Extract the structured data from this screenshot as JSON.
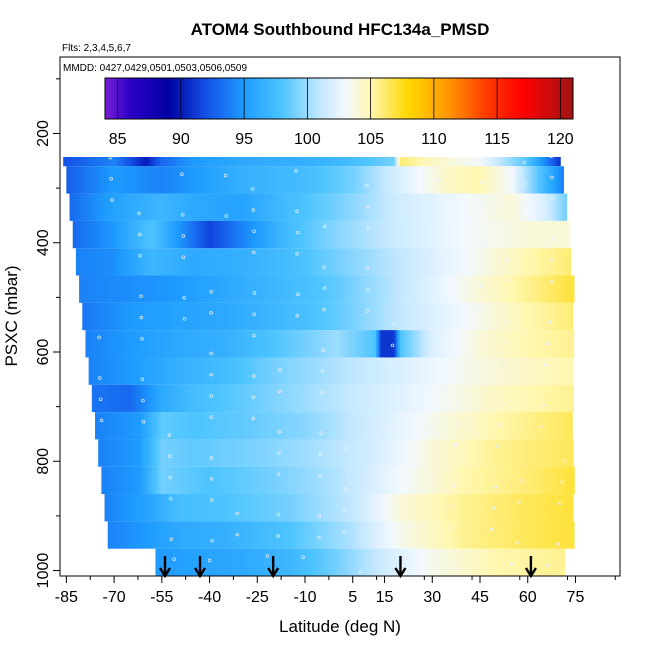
{
  "chart_data": {
    "type": "heatmap",
    "title": "ATOM4 Southbound HFC134a_PMSD",
    "flights_label": "Flts: 2,3,4,5,6,7",
    "dates_label": "MMDD: 0427,0429,0501,0503,0506,0509",
    "xlabel": "Latitude (deg N)",
    "ylabel": "PSXC (mbar)",
    "xlim": [
      -87,
      89
    ],
    "ylim": [
      1010,
      60
    ],
    "x_ticks": [
      -85,
      -70,
      -55,
      -40,
      -25,
      -10,
      5,
      15,
      30,
      45,
      60,
      75
    ],
    "x_tick_labels": [
      "-85",
      "-70",
      "-55",
      "-40",
      "-25",
      "-10",
      "5",
      "15",
      "30",
      "45",
      "60",
      "75"
    ],
    "y_ticks": [
      200,
      400,
      600,
      800,
      1000
    ],
    "y_tick_labels": [
      "200",
      "400",
      "600",
      "800",
      "1000"
    ],
    "colorbar": {
      "min": 84,
      "max": 121,
      "ticks": [
        85,
        90,
        95,
        100,
        105,
        110,
        115,
        120
      ],
      "tick_labels": [
        "85",
        "90",
        "95",
        "100",
        "105",
        "110",
        "115",
        "120"
      ],
      "colors": [
        {
          "v": 84,
          "c": "#7a1fd6"
        },
        {
          "v": 86,
          "c": "#2d00c8"
        },
        {
          "v": 89,
          "c": "#0000a0"
        },
        {
          "v": 92,
          "c": "#1450e6"
        },
        {
          "v": 95,
          "c": "#1e9bff"
        },
        {
          "v": 98,
          "c": "#4dc4ff"
        },
        {
          "v": 101,
          "c": "#c4e8ff"
        },
        {
          "v": 103,
          "c": "#f2f8ff"
        },
        {
          "v": 105,
          "c": "#fff7b0"
        },
        {
          "v": 108,
          "c": "#ffd700"
        },
        {
          "v": 111,
          "c": "#ff9a00"
        },
        {
          "v": 114,
          "c": "#ff4000"
        },
        {
          "v": 117,
          "c": "#ff0000"
        },
        {
          "v": 121,
          "c": "#a01414"
        }
      ]
    },
    "profile_arrows_lat": [
      -54,
      -43,
      -20,
      20,
      61
    ],
    "bands": [
      {
        "p_top": 165,
        "p_bot": 210,
        "lat_start": -60,
        "lat_end": 69,
        "profile": [
          [
            -60,
            93
          ],
          [
            -52,
            91
          ],
          [
            -40,
            90
          ],
          [
            -25,
            90
          ],
          [
            -10,
            89.5
          ],
          [
            10,
            89
          ],
          [
            30,
            88.5
          ],
          [
            50,
            87.5
          ],
          [
            64,
            86.5
          ],
          [
            69,
            84
          ]
        ]
      },
      {
        "p_top": 210,
        "p_bot": 260,
        "lat_start": -86,
        "lat_end": 70,
        "profile": [
          [
            -86,
            92
          ],
          [
            -70,
            94
          ],
          [
            -60,
            90
          ],
          [
            -55,
            93
          ],
          [
            -45,
            95
          ],
          [
            -30,
            96
          ],
          [
            -10,
            96.5
          ],
          [
            0,
            97
          ],
          [
            18,
            99
          ],
          [
            20,
            106
          ],
          [
            30,
            104.5
          ],
          [
            45,
            103
          ],
          [
            60,
            98
          ],
          [
            70,
            91
          ]
        ]
      },
      {
        "p_top": 260,
        "p_bot": 310,
        "lat_start": -85,
        "lat_end": 71,
        "profile": [
          [
            -85,
            92.5
          ],
          [
            -70,
            95
          ],
          [
            -55,
            94
          ],
          [
            -45,
            95
          ],
          [
            -30,
            96.5
          ],
          [
            -10,
            97.5
          ],
          [
            5,
            99
          ],
          [
            20,
            102
          ],
          [
            35,
            104.5
          ],
          [
            45,
            105
          ],
          [
            55,
            103
          ],
          [
            62,
            99
          ],
          [
            71,
            94
          ]
        ]
      },
      {
        "p_top": 310,
        "p_bot": 360,
        "lat_start": -84,
        "lat_end": 72,
        "profile": [
          [
            -84,
            93
          ],
          [
            -70,
            95.5
          ],
          [
            -55,
            97
          ],
          [
            -45,
            96
          ],
          [
            -30,
            95.5
          ],
          [
            -15,
            97.5
          ],
          [
            0,
            99
          ],
          [
            20,
            101.5
          ],
          [
            40,
            103
          ],
          [
            55,
            104
          ],
          [
            65,
            102
          ],
          [
            72,
            99
          ]
        ]
      },
      {
        "p_top": 360,
        "p_bot": 410,
        "lat_start": -83,
        "lat_end": 73,
        "profile": [
          [
            -83,
            93
          ],
          [
            -70,
            95
          ],
          [
            -58,
            98
          ],
          [
            -50,
            95
          ],
          [
            -40,
            91.5
          ],
          [
            -30,
            94
          ],
          [
            -15,
            97.5
          ],
          [
            0,
            99.5
          ],
          [
            20,
            101.5
          ],
          [
            40,
            103
          ],
          [
            60,
            104
          ],
          [
            73,
            104
          ]
        ]
      },
      {
        "p_top": 410,
        "p_bot": 460,
        "lat_start": -82,
        "lat_end": 73,
        "profile": [
          [
            -82,
            94
          ],
          [
            -70,
            94.5
          ],
          [
            -58,
            97
          ],
          [
            -45,
            96
          ],
          [
            -30,
            96.5
          ],
          [
            -15,
            97.5
          ],
          [
            0,
            99
          ],
          [
            20,
            101
          ],
          [
            40,
            103
          ],
          [
            60,
            105
          ],
          [
            73,
            106
          ]
        ]
      },
      {
        "p_top": 460,
        "p_bot": 510,
        "lat_start": -81,
        "lat_end": 74,
        "profile": [
          [
            -81,
            94
          ],
          [
            -65,
            94.5
          ],
          [
            -50,
            95
          ],
          [
            -35,
            96
          ],
          [
            -20,
            97
          ],
          [
            0,
            98.5
          ],
          [
            20,
            101
          ],
          [
            40,
            103.5
          ],
          [
            60,
            105.5
          ],
          [
            74,
            107
          ]
        ]
      },
      {
        "p_top": 510,
        "p_bot": 560,
        "lat_start": -80,
        "lat_end": 74,
        "profile": [
          [
            -80,
            93.5
          ],
          [
            -65,
            95
          ],
          [
            -50,
            95.5
          ],
          [
            -35,
            96
          ],
          [
            -20,
            97
          ],
          [
            0,
            98.5
          ],
          [
            20,
            101
          ],
          [
            40,
            103
          ],
          [
            60,
            105
          ],
          [
            74,
            106
          ]
        ]
      },
      {
        "p_top": 560,
        "p_bot": 610,
        "lat_start": -79,
        "lat_end": 74,
        "profile": [
          [
            -79,
            94
          ],
          [
            -65,
            95
          ],
          [
            -50,
            96
          ],
          [
            -35,
            96.5
          ],
          [
            -20,
            98
          ],
          [
            0,
            100
          ],
          [
            12,
            98
          ],
          [
            14,
            91
          ],
          [
            18,
            91
          ],
          [
            20,
            98
          ],
          [
            30,
            102
          ],
          [
            45,
            104
          ],
          [
            60,
            105
          ],
          [
            74,
            105.5
          ]
        ]
      },
      {
        "p_top": 610,
        "p_bot": 660,
        "lat_start": -78,
        "lat_end": 74,
        "profile": [
          [
            -78,
            94
          ],
          [
            -65,
            95
          ],
          [
            -50,
            96.5
          ],
          [
            -35,
            97.5
          ],
          [
            -20,
            99
          ],
          [
            0,
            100.5
          ],
          [
            20,
            102
          ],
          [
            40,
            103.5
          ],
          [
            60,
            104.5
          ],
          [
            74,
            105
          ]
        ]
      },
      {
        "p_top": 660,
        "p_bot": 710,
        "lat_start": -77,
        "lat_end": 74,
        "profile": [
          [
            -77,
            93.5
          ],
          [
            -65,
            93
          ],
          [
            -55,
            96
          ],
          [
            -45,
            97.5
          ],
          [
            -30,
            98.5
          ],
          [
            -10,
            100
          ],
          [
            10,
            101.5
          ],
          [
            30,
            103
          ],
          [
            50,
            104.5
          ],
          [
            74,
            105.5
          ]
        ]
      },
      {
        "p_top": 710,
        "p_bot": 760,
        "lat_start": -76,
        "lat_end": 74,
        "profile": [
          [
            -76,
            94
          ],
          [
            -62,
            95
          ],
          [
            -55,
            98.5
          ],
          [
            -45,
            98
          ],
          [
            -30,
            98.5
          ],
          [
            -10,
            99.5
          ],
          [
            10,
            101.5
          ],
          [
            30,
            103.5
          ],
          [
            50,
            105
          ],
          [
            74,
            106.5
          ]
        ]
      },
      {
        "p_top": 760,
        "p_bot": 810,
        "lat_start": -75,
        "lat_end": 74,
        "profile": [
          [
            -75,
            94
          ],
          [
            -62,
            95
          ],
          [
            -55,
            99
          ],
          [
            -45,
            98.5
          ],
          [
            -30,
            99
          ],
          [
            -10,
            100
          ],
          [
            10,
            101.5
          ],
          [
            30,
            104
          ],
          [
            50,
            105.5
          ],
          [
            74,
            106.5
          ]
        ]
      },
      {
        "p_top": 810,
        "p_bot": 860,
        "lat_start": -74,
        "lat_end": 74,
        "profile": [
          [
            -74,
            94
          ],
          [
            -62,
            95
          ],
          [
            -55,
            99
          ],
          [
            -40,
            98
          ],
          [
            -20,
            99
          ],
          [
            0,
            100.5
          ],
          [
            20,
            103
          ],
          [
            40,
            105
          ],
          [
            60,
            106
          ],
          [
            74,
            107
          ]
        ]
      },
      {
        "p_top": 860,
        "p_bot": 910,
        "lat_start": -73,
        "lat_end": 74,
        "profile": [
          [
            -73,
            94
          ],
          [
            -60,
            95.5
          ],
          [
            -50,
            97.5
          ],
          [
            -35,
            98
          ],
          [
            -15,
            99
          ],
          [
            5,
            101
          ],
          [
            20,
            104
          ],
          [
            40,
            105.5
          ],
          [
            60,
            106.5
          ],
          [
            74,
            107
          ]
        ]
      },
      {
        "p_top": 910,
        "p_bot": 960,
        "lat_start": -72,
        "lat_end": 74,
        "profile": [
          [
            -72,
            94
          ],
          [
            -60,
            95
          ],
          [
            -50,
            96
          ],
          [
            -35,
            96.5
          ],
          [
            -15,
            98
          ],
          [
            5,
            100.5
          ],
          [
            20,
            103.5
          ],
          [
            40,
            105.5
          ],
          [
            60,
            106.5
          ],
          [
            74,
            107
          ]
        ]
      },
      {
        "p_top": 960,
        "p_bot": 1010,
        "lat_start": -57,
        "lat_end": 71,
        "profile": [
          [
            -57,
            95
          ],
          [
            -45,
            95.5
          ],
          [
            -30,
            96
          ],
          [
            -15,
            97
          ],
          [
            0,
            99
          ],
          [
            15,
            101.5
          ],
          [
            30,
            103.5
          ],
          [
            50,
            105
          ],
          [
            71,
            105.5
          ]
        ]
      }
    ]
  }
}
